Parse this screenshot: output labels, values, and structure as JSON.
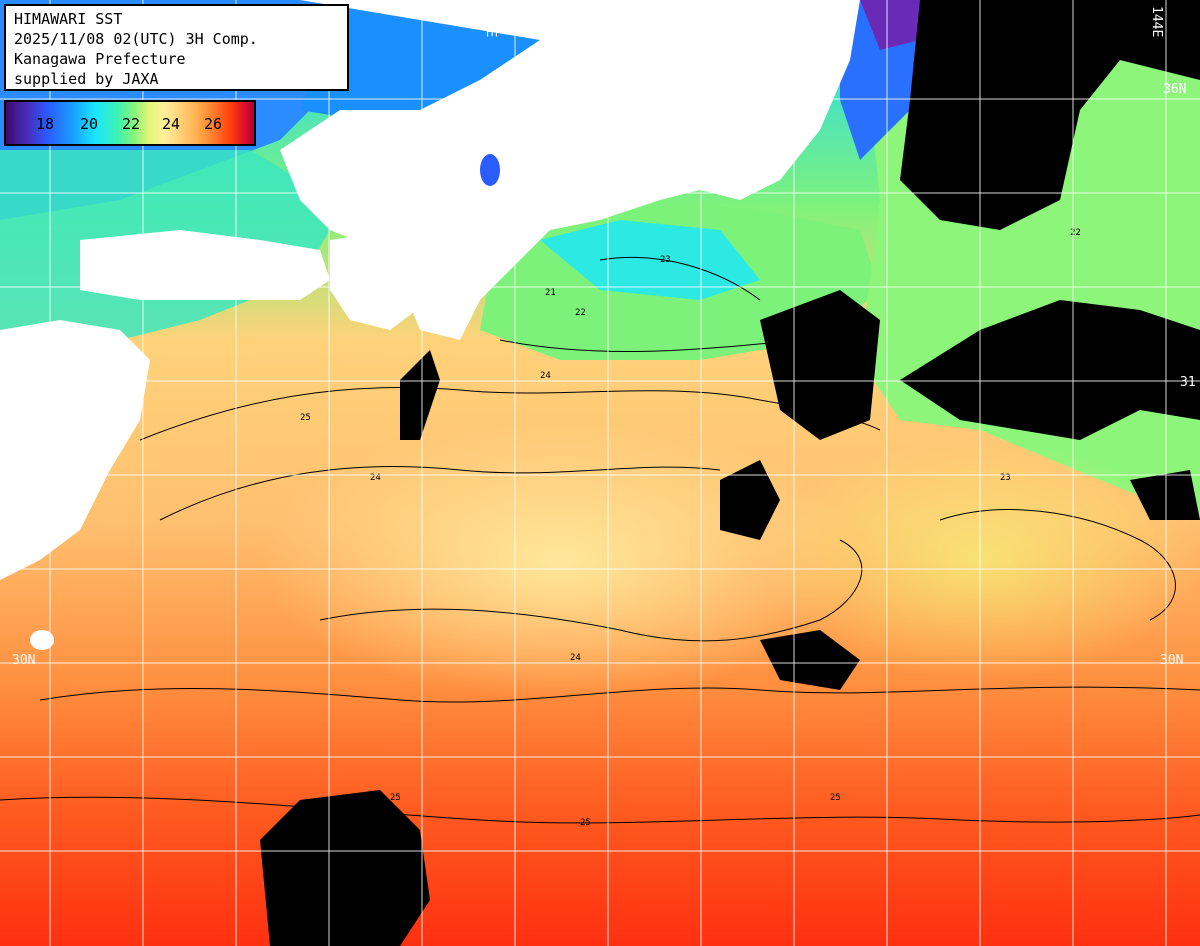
{
  "info": {
    "title": "HIMAWARI SST",
    "datetime": "2025/11/08 02(UTC) 3H Comp.",
    "region": "Kanagawa Prefecture",
    "credit": "supplied by JAXA"
  },
  "legend": {
    "ticks": [
      "18",
      "20",
      "22",
      "24",
      "26"
    ]
  },
  "grid_labels": {
    "lat_36_left": "36N",
    "lat_30_left": "30N",
    "lat_30_right": "30N",
    "lon_136": "136E",
    "lon_144": "144E",
    "lat_31_right": "31"
  },
  "contour_labels": [
    "21",
    "22",
    "23",
    "24",
    "25",
    "24",
    "23",
    "22",
    "25",
    "24",
    "25",
    "25"
  ],
  "colors": {
    "land": "#ffffff",
    "cloud": "#000000",
    "cold": "#2a5cff",
    "cool": "#19e6ff",
    "mild": "#8cf57a",
    "warm_yellow": "#ffe59a",
    "orange": "#ff9a40",
    "red": "#ff3a10",
    "grid": "#ffffff"
  }
}
